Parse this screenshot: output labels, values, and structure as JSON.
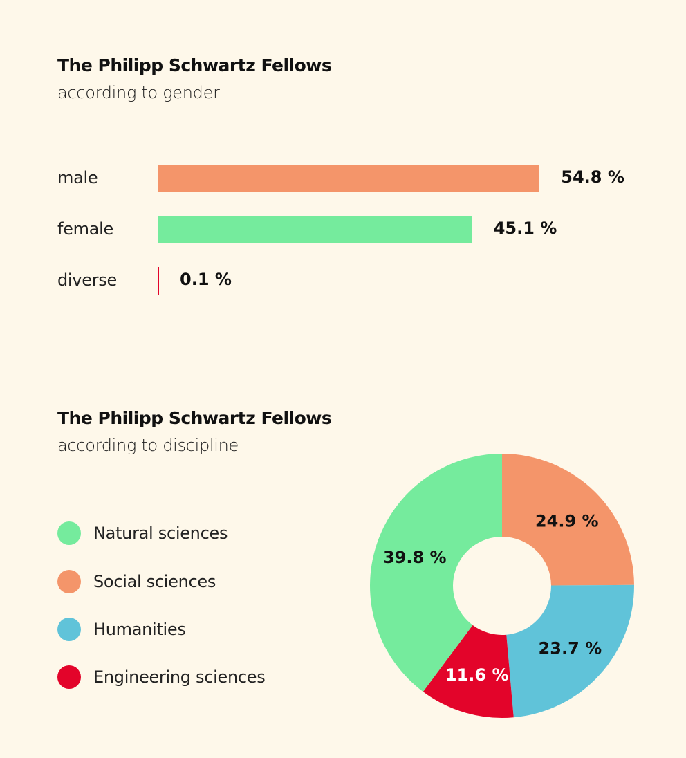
{
  "chart_data": [
    {
      "type": "bar",
      "orientation": "horizontal",
      "title": "The Philipp Schwartz Fellows",
      "subtitle": "according to gender",
      "categories": [
        "male",
        "female",
        "diverse"
      ],
      "values": [
        54.8,
        45.1,
        0.1
      ],
      "labels": [
        "54.8 %",
        "45.1 %",
        "0.1 %"
      ],
      "colors": [
        "#f4956a",
        "#75eb9d",
        "#e3042a"
      ],
      "grid": false
    },
    {
      "type": "pie",
      "donut": true,
      "title": "The Philipp Schwartz Fellows",
      "subtitle": "according to discipline",
      "legend_position": "left",
      "legend": [
        "Natural sciences",
        "Social sciences",
        "Humanities",
        "Engineering sciences"
      ],
      "slices": [
        {
          "name": "Social sciences",
          "value": 24.9,
          "label": "24.9 %",
          "color": "#f4956a",
          "label_color": "#111111"
        },
        {
          "name": "Humanities",
          "value": 23.7,
          "label": "23.7 %",
          "color": "#60c3d9",
          "label_color": "#111111"
        },
        {
          "name": "Engineering sciences",
          "value": 11.6,
          "label": "11.6 %",
          "color": "#e3042a",
          "label_color": "#ffffff"
        },
        {
          "name": "Natural sciences",
          "value": 39.8,
          "label": "39.8 %",
          "color": "#75eb9d",
          "label_color": "#111111"
        }
      ]
    }
  ],
  "background": "#fef8ea"
}
